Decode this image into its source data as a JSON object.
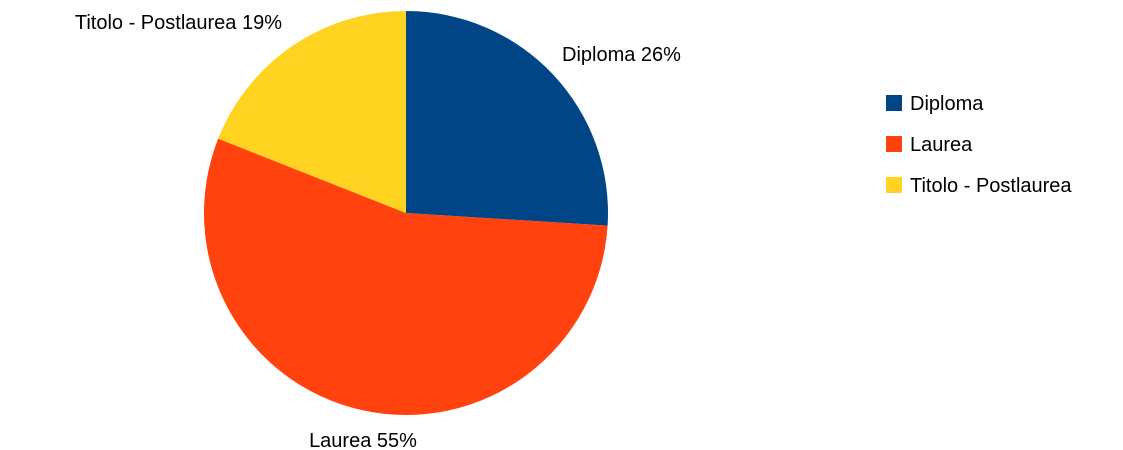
{
  "chart_data": {
    "type": "pie",
    "title": "",
    "categories": [
      "Diploma",
      "Laurea",
      "Titolo - Postlaurea"
    ],
    "values": [
      26,
      55,
      19
    ],
    "unit": "%",
    "colors": [
      "#004586",
      "#ff420e",
      "#ffd320"
    ],
    "data_labels": [
      "Diploma 26%",
      "Laurea 55%",
      "Titolo - Postlaurea 19%"
    ],
    "legend": {
      "position": "right",
      "entries": [
        "Diploma",
        "Laurea",
        "Titolo - Postlaurea"
      ]
    }
  }
}
